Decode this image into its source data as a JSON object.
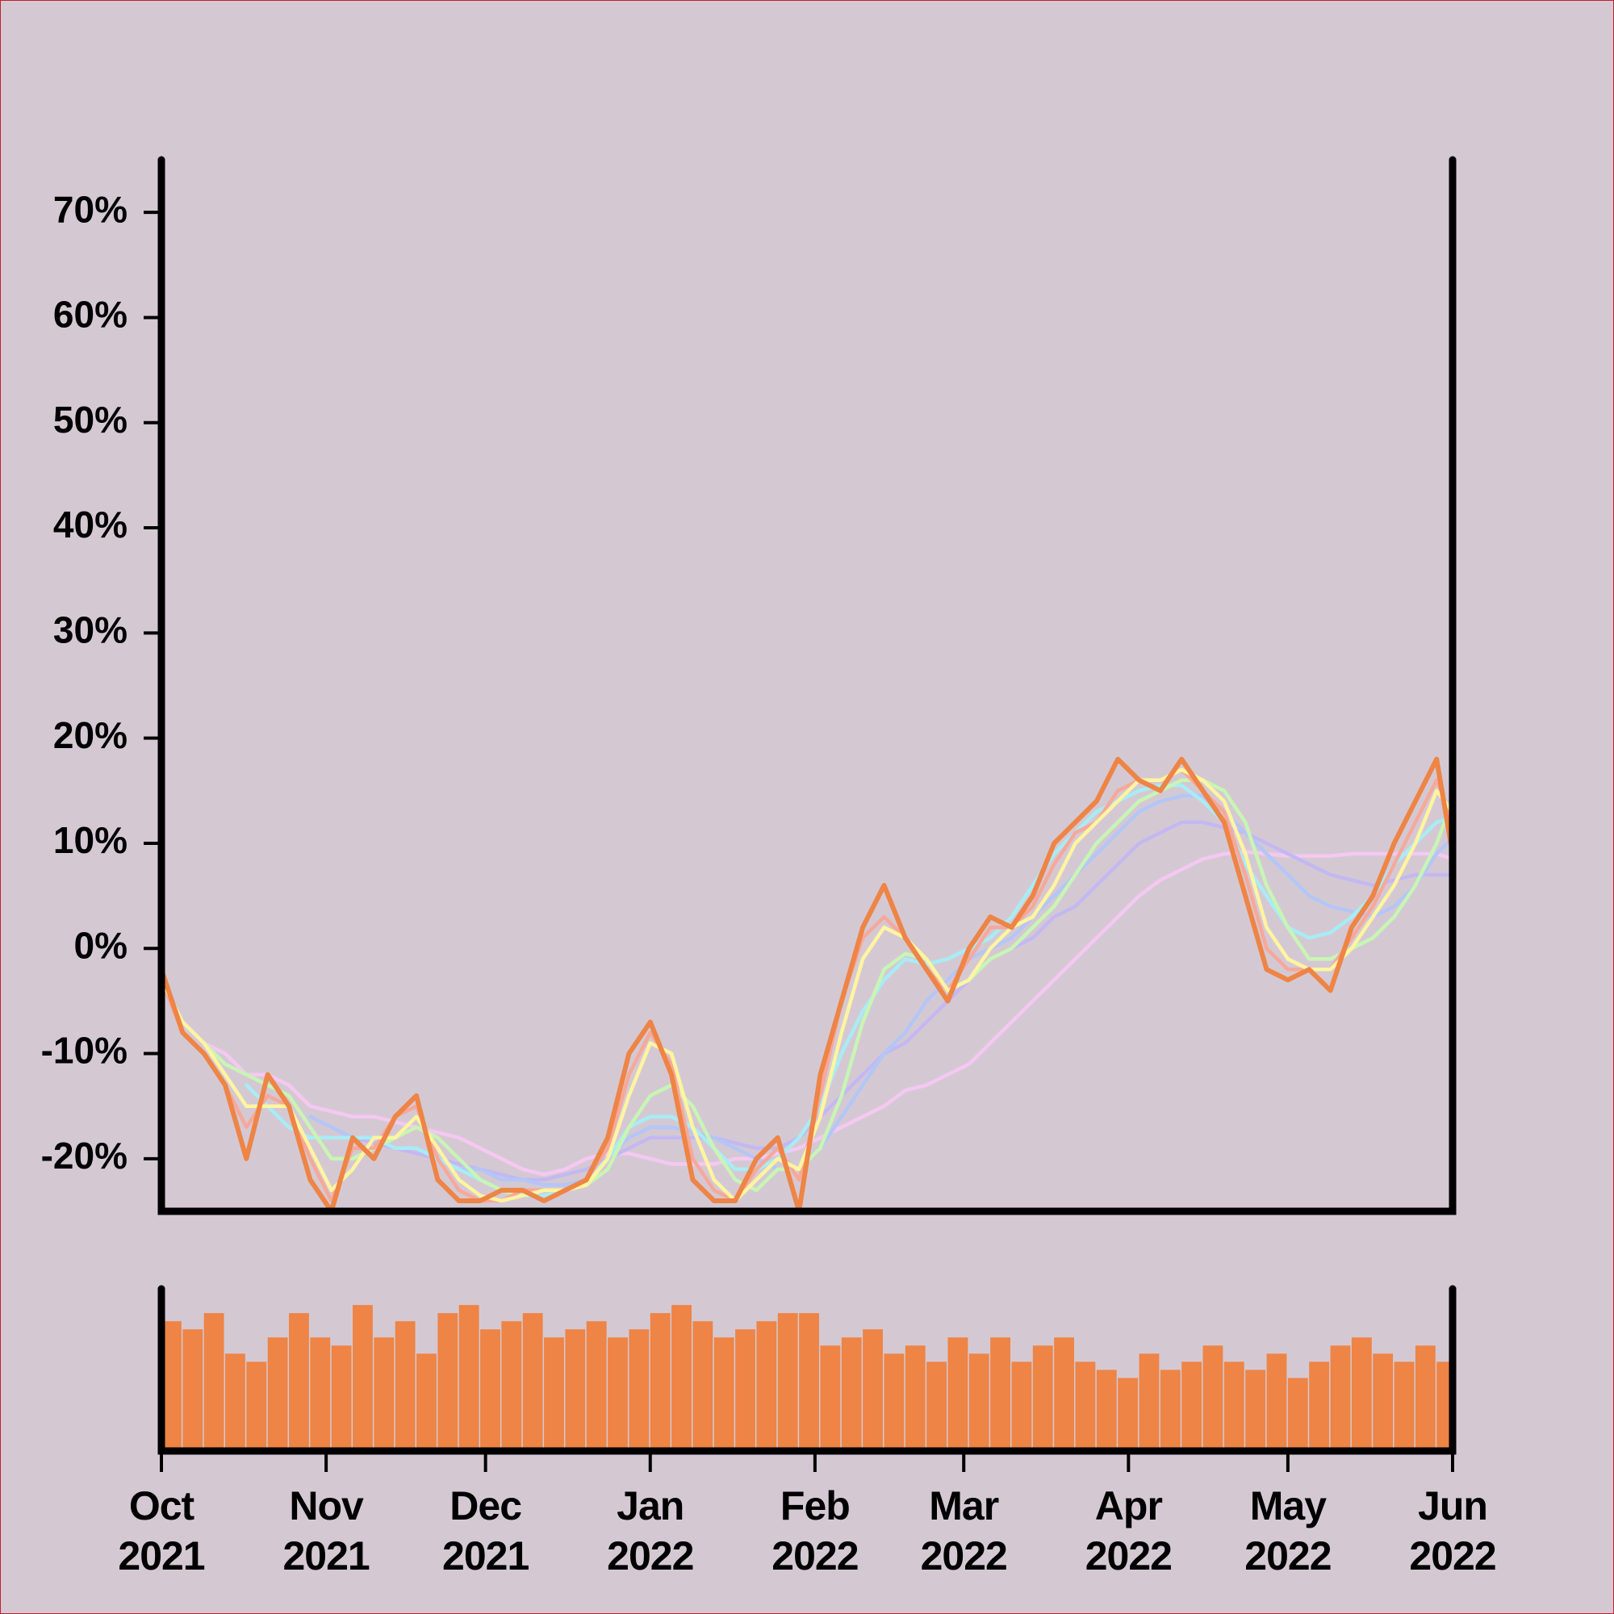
{
  "chart_data": [
    {
      "type": "line",
      "x": [
        0,
        4,
        8,
        12,
        16,
        20,
        24,
        28,
        32,
        36,
        40,
        44,
        48,
        52,
        56,
        60,
        64,
        68,
        72,
        76,
        80,
        84,
        88,
        92,
        96,
        100,
        104,
        108,
        112,
        116,
        120,
        124,
        128,
        132,
        136,
        140,
        144,
        148,
        152,
        156,
        160,
        164,
        168,
        172,
        176,
        180,
        184,
        188,
        192,
        196,
        200,
        204,
        208,
        212,
        216,
        220,
        224,
        228,
        232,
        236,
        240,
        243
      ],
      "xlim": [
        0,
        243
      ],
      "ylim": [
        -25,
        75
      ],
      "yticks": [
        {
          "value": -20,
          "label": "-20%"
        },
        {
          "value": -10,
          "label": "-10%"
        },
        {
          "value": 0,
          "label": "0%"
        },
        {
          "value": 10,
          "label": "10%"
        },
        {
          "value": 20,
          "label": "20%"
        },
        {
          "value": 30,
          "label": "30%"
        },
        {
          "value": 40,
          "label": "40%"
        },
        {
          "value": 50,
          "label": "50%"
        },
        {
          "value": 60,
          "label": "60%"
        },
        {
          "value": 70,
          "label": "70%"
        }
      ],
      "series": [
        {
          "color": "#f5c8f2",
          "values": [
            -3,
            -7,
            -9,
            -10,
            -12,
            -12,
            -13,
            -15,
            -15.5,
            -16,
            -16,
            -16.5,
            -17,
            -17.5,
            -18,
            -19,
            -20,
            -21,
            -21.5,
            -21,
            -20,
            -19.5,
            -19.5,
            -20,
            -20.5,
            -20.5,
            -20.5,
            -20,
            -20,
            -19.5,
            -19,
            -18,
            -17,
            -16,
            -15,
            -13.5,
            -13,
            -12,
            -11,
            -9,
            -7,
            -5,
            -3,
            -1,
            1,
            3,
            5,
            6.5,
            7.5,
            8.5,
            9,
            9.2,
            9,
            8.8,
            8.8,
            8.8,
            9,
            9,
            9,
            9,
            9,
            8.5
          ]
        },
        {
          "color": "#c3b8f2",
          "values": [
            null,
            null,
            null,
            null,
            null,
            null,
            null,
            null,
            -17,
            -18,
            -18.5,
            -19,
            -19.5,
            -20,
            -20.5,
            -21,
            -21.5,
            -22,
            -22,
            -21.5,
            -21,
            -20,
            -19,
            -18,
            -18,
            -18,
            -18,
            -18.5,
            -19,
            -19,
            -18,
            -16,
            -14,
            -12,
            -10,
            -9,
            -7,
            -5,
            -3,
            -1,
            0,
            1,
            3,
            4,
            6,
            8,
            10,
            11,
            12,
            12,
            11.5,
            11,
            10,
            9,
            8,
            7,
            6.5,
            6,
            6.5,
            7,
            7,
            7
          ]
        },
        {
          "color": "#b3c6f7",
          "values": [
            null,
            null,
            null,
            null,
            null,
            null,
            null,
            -16,
            -17,
            -18,
            -18,
            -19,
            -19,
            -20,
            -21,
            -21,
            -22,
            -22,
            -22.5,
            -22.5,
            -22,
            -20,
            -18,
            -17,
            -17,
            -17.5,
            -18,
            -19,
            -20,
            -21,
            -21,
            -19,
            -16,
            -13,
            -10,
            -8,
            -5,
            -3,
            -1,
            0,
            1,
            3,
            5,
            7,
            9,
            11,
            13,
            14,
            14.5,
            14.5,
            13,
            11,
            9,
            7,
            5,
            4,
            3.5,
            3,
            4,
            6,
            9,
            10.5
          ]
        },
        {
          "color": "#a8ecf5",
          "values": [
            null,
            null,
            null,
            null,
            -13,
            -15,
            -17,
            -18,
            -18,
            -18,
            -18,
            -19,
            -19,
            -20,
            -21,
            -22,
            -23,
            -23.5,
            -23.5,
            -23,
            -22,
            -20,
            -17,
            -16,
            -16,
            -17,
            -19,
            -21,
            -21,
            -20,
            -18,
            -15,
            -10,
            -6,
            -3,
            -1,
            -1.5,
            -1,
            0,
            1,
            3,
            6,
            9,
            11,
            13,
            14,
            15,
            15.5,
            15.5,
            14,
            12,
            8,
            5,
            2,
            1,
            1.5,
            3,
            5,
            8,
            10,
            12,
            12.5
          ]
        },
        {
          "color": "#c8f5b4",
          "values": [
            null,
            null,
            -9,
            -11,
            -12,
            -13,
            -14,
            -17,
            -20,
            -20,
            -19,
            -18,
            -17,
            -18,
            -20,
            -22,
            -23,
            -23.5,
            -23,
            -23,
            -22.5,
            -21,
            -17,
            -14,
            -13,
            -15,
            -19,
            -22,
            -23,
            -21,
            -21,
            -19,
            -14,
            -7,
            -2,
            -0.5,
            -1,
            -4,
            -3,
            -1,
            0,
            2,
            4,
            7,
            10,
            12,
            14,
            15,
            16,
            16,
            15,
            12,
            6,
            2,
            -1,
            -1,
            0,
            1,
            3,
            6,
            10,
            14
          ]
        },
        {
          "color": "#f6a89a",
          "values": [
            -3,
            -8,
            -10,
            -13,
            -17,
            -14,
            -15,
            -20,
            -24,
            -19,
            -19,
            -16,
            -15,
            -20,
            -23,
            -24,
            -24,
            -23,
            -23,
            -23,
            -22,
            -19,
            -12,
            -8,
            -11,
            -20,
            -23,
            -24,
            -21,
            -19,
            -22,
            -14,
            -5,
            1,
            3,
            1,
            -2,
            -4,
            -1,
            2,
            2,
            4,
            8,
            11,
            12,
            15,
            16,
            16,
            17,
            15,
            13,
            7,
            0,
            -2,
            -2,
            -2,
            1,
            4,
            8,
            12,
            16,
            12
          ]
        },
        {
          "color": "#fff4a0",
          "values": [
            -3,
            -7,
            -9,
            -12,
            -15,
            -15,
            -15,
            -19,
            -23,
            -21,
            -18,
            -18,
            -16,
            -19,
            -22,
            -23.5,
            -24,
            -23.5,
            -23,
            -23,
            -22.5,
            -20,
            -14,
            -9,
            -10,
            -17,
            -22,
            -24,
            -22,
            -20,
            -21,
            -16,
            -8,
            -1,
            2,
            1,
            -1,
            -4,
            -3,
            0,
            2,
            3,
            6,
            10,
            12,
            14,
            16,
            16,
            17,
            16,
            14,
            9,
            2,
            -1,
            -2,
            -2,
            0,
            3,
            6,
            10,
            15,
            13
          ]
        },
        {
          "color": "#ee8445",
          "values": [
            -2,
            -8,
            -10,
            -13,
            -20,
            -12,
            -15,
            -22,
            -25,
            -18,
            -20,
            -16,
            -14,
            -22,
            -24,
            -24,
            -23,
            -23,
            -24,
            -23,
            -22,
            -18,
            -10,
            -7,
            -12,
            -22,
            -24,
            -24,
            -20,
            -18,
            -25,
            -12,
            -5,
            2,
            6,
            1,
            -2,
            -5,
            0,
            3,
            2,
            5,
            10,
            12,
            14,
            18,
            16,
            15,
            18,
            15,
            12,
            5,
            -2,
            -3,
            -2,
            -4,
            2,
            5,
            10,
            14,
            18,
            9
          ]
        }
      ]
    },
    {
      "type": "bar",
      "x": [
        0,
        4,
        8,
        12,
        16,
        20,
        24,
        28,
        32,
        36,
        40,
        44,
        48,
        52,
        56,
        60,
        64,
        68,
        72,
        76,
        80,
        84,
        88,
        92,
        96,
        100,
        104,
        108,
        112,
        116,
        120,
        124,
        128,
        132,
        136,
        140,
        144,
        148,
        152,
        156,
        160,
        164,
        168,
        172,
        176,
        180,
        184,
        188,
        192,
        196,
        200,
        204,
        208,
        212,
        216,
        220,
        224,
        228,
        232,
        236,
        240,
        243
      ],
      "xlim": [
        0,
        243
      ],
      "ylim": [
        0,
        100
      ],
      "color": "#ee8445",
      "xticks": [
        {
          "value": 0,
          "label": "Oct 2021"
        },
        {
          "value": 31,
          "label": "Nov 2021"
        },
        {
          "value": 61,
          "label": "Dec 2021"
        },
        {
          "value": 92,
          "label": "Jan 2022"
        },
        {
          "value": 123,
          "label": "Feb 2022"
        },
        {
          "value": 151,
          "label": "Mar 2022"
        },
        {
          "value": 182,
          "label": "Apr 2022"
        },
        {
          "value": 212,
          "label": "May 2022"
        },
        {
          "value": 243,
          "label": "Jun 2022"
        }
      ],
      "values": [
        80,
        75,
        85,
        60,
        55,
        70,
        85,
        70,
        65,
        90,
        70,
        80,
        60,
        85,
        90,
        75,
        80,
        85,
        70,
        75,
        80,
        70,
        75,
        85,
        90,
        80,
        70,
        75,
        80,
        85,
        85,
        65,
        70,
        75,
        60,
        65,
        55,
        70,
        60,
        70,
        55,
        65,
        70,
        55,
        50,
        45,
        60,
        50,
        55,
        65,
        55,
        50,
        60,
        45,
        55,
        65,
        70,
        60,
        55,
        65,
        55,
        50
      ]
    }
  ]
}
